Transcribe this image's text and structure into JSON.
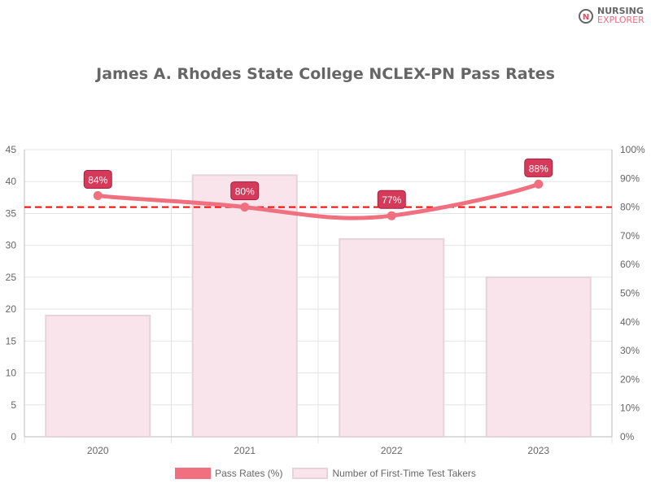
{
  "logo": {
    "line1": "NURSING",
    "line2": "EXPLORER"
  },
  "chart_data": {
    "type": "bar",
    "title": "James A. Rhodes State College NCLEX-PN Pass Rates",
    "categories": [
      "2020",
      "2021",
      "2022",
      "2023"
    ],
    "series": [
      {
        "name": "Pass Rates (%)",
        "type": "line",
        "axis": "right",
        "values": [
          84,
          80,
          77,
          88
        ],
        "labels": [
          "84%",
          "80%",
          "77%",
          "88%"
        ],
        "color": "#f07080"
      },
      {
        "name": "Number of First-Time Test Takers",
        "type": "bar",
        "axis": "left",
        "values": [
          19,
          41,
          31,
          25
        ],
        "color": "#f8e4ea"
      }
    ],
    "reference_line": {
      "value": 80,
      "axis": "right",
      "color": "#ff0000",
      "style": "dashed"
    },
    "ylim": [
      0,
      45
    ],
    "y_ticks": [
      "0",
      "5",
      "10",
      "15",
      "20",
      "25",
      "30",
      "35",
      "40",
      "45"
    ],
    "y2lim": [
      0,
      100
    ],
    "y2_ticks": [
      "0%",
      "10%",
      "20%",
      "30%",
      "40%",
      "50%",
      "60%",
      "70%",
      "80%",
      "90%",
      "100%"
    ],
    "grid": true,
    "legend": "bottom"
  }
}
